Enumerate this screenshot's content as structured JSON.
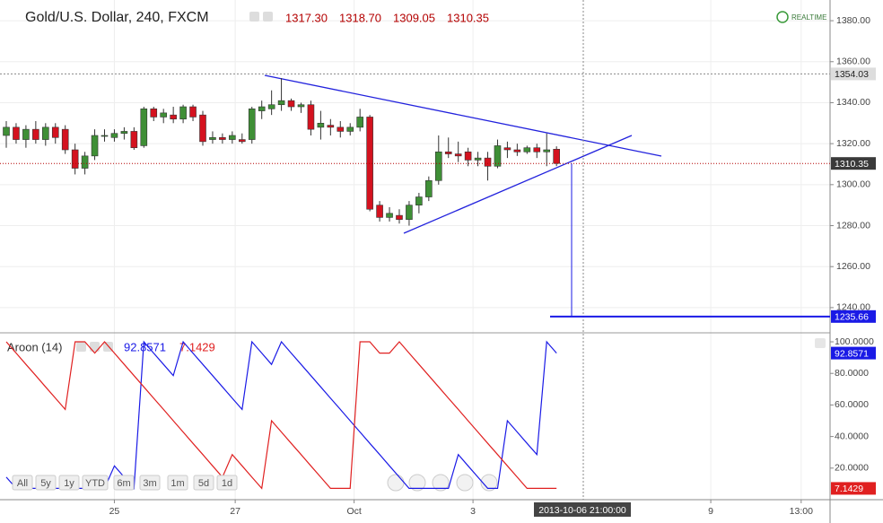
{
  "chart_data": [
    {
      "type": "candlestick",
      "title": "Gold/U.S. Dollar, 240, FXCM",
      "legend_values": [
        "1317.30",
        "1318.70",
        "1309.05",
        "1310.35"
      ],
      "badge": "REALTIME",
      "x": [
        0,
        1,
        2,
        3,
        4,
        5,
        6,
        7,
        8,
        9,
        10,
        11,
        12,
        13,
        14,
        15,
        16,
        17,
        18,
        19,
        20,
        21,
        22,
        23,
        24,
        25,
        26,
        27,
        28,
        29,
        30,
        31,
        32,
        33,
        34,
        35,
        36,
        37,
        38,
        39,
        40,
        41,
        42,
        43,
        44,
        45,
        46,
        47,
        48,
        49,
        50,
        51,
        52,
        53,
        54,
        55,
        56
      ],
      "open": [
        1324,
        1328,
        1322,
        1327,
        1322,
        1328,
        1327,
        1317,
        1308,
        1314,
        1324,
        1323,
        1325,
        1326,
        1319,
        1337,
        1333,
        1334,
        1332,
        1338,
        1334,
        1322,
        1323,
        1322,
        1322,
        1322,
        1336,
        1337,
        1339,
        1341,
        1338,
        1339,
        1328,
        1329,
        1328,
        1326,
        1328,
        1333,
        1290,
        1284,
        1285,
        1283,
        1290,
        1294,
        1302,
        1316,
        1315,
        1316,
        1312,
        1313,
        1309,
        1318,
        1317,
        1316,
        1318,
        1316,
        1317.3
      ],
      "high": [
        1331,
        1330,
        1329,
        1331,
        1330,
        1330,
        1329,
        1320,
        1316,
        1327,
        1327,
        1327,
        1328,
        1328,
        1338,
        1338,
        1337,
        1338,
        1339,
        1339,
        1336,
        1326,
        1325,
        1326,
        1325,
        1338,
        1341,
        1346,
        1352,
        1342,
        1340,
        1341,
        1336,
        1332,
        1331,
        1330,
        1337,
        1334,
        1292,
        1289,
        1288,
        1292,
        1296,
        1304,
        1324,
        1323,
        1321,
        1318,
        1316,
        1316,
        1322,
        1321,
        1320,
        1319,
        1320,
        1325,
        1318.7
      ],
      "low": [
        1318,
        1320,
        1318,
        1320,
        1319,
        1320,
        1315,
        1305,
        1305,
        1312,
        1321,
        1321,
        1322,
        1317,
        1318,
        1331,
        1330,
        1330,
        1330,
        1331,
        1319,
        1320,
        1320,
        1320,
        1320,
        1320,
        1332,
        1334,
        1336,
        1336,
        1335,
        1324,
        1322,
        1324,
        1323,
        1324,
        1326,
        1287,
        1282,
        1282,
        1281,
        1280,
        1286,
        1292,
        1300,
        1313,
        1311,
        1309,
        1309,
        1302,
        1308,
        1313,
        1314,
        1315,
        1313,
        1309,
        1309.05
      ],
      "close": [
        1328,
        1322,
        1327,
        1322,
        1328,
        1323,
        1317,
        1308,
        1314,
        1324,
        1324,
        1325,
        1326,
        1318,
        1337,
        1333,
        1335,
        1332,
        1338,
        1333,
        1321,
        1323,
        1322,
        1324,
        1321,
        1337,
        1338,
        1339,
        1341,
        1338,
        1339,
        1327,
        1330,
        1328,
        1326,
        1328,
        1333,
        1288,
        1284,
        1286,
        1283,
        1290,
        1294,
        1302,
        1316,
        1315,
        1314,
        1312,
        1313,
        1309,
        1319,
        1317,
        1316,
        1318,
        1316,
        1317,
        1310.35
      ],
      "up_color": "#3f8f36",
      "down_color": "#d4121f",
      "xlim": [
        -0.64,
        83.84
      ],
      "xticks": [
        {
          "value": 11,
          "label": "25"
        },
        {
          "value": 23.3,
          "label": "27"
        },
        {
          "value": 35.4,
          "label": "Oct"
        },
        {
          "value": 47.5,
          "label": "3"
        },
        {
          "value": 71.7,
          "label": "9"
        },
        {
          "value": 80.9,
          "label": "13:00"
        }
      ],
      "ylim": [
        1227.7,
        1390.1
      ],
      "yticks": [
        {
          "value": 1240,
          "label": "1240.00"
        },
        {
          "value": 1260,
          "label": "1260.00"
        },
        {
          "value": 1280,
          "label": "1280.00"
        },
        {
          "value": 1300,
          "label": "1300.00"
        },
        {
          "value": 1320,
          "label": "1320.00"
        },
        {
          "value": 1340,
          "label": "1340.00"
        },
        {
          "value": 1360,
          "label": "1360.00"
        },
        {
          "value": 1380,
          "label": "1380.00"
        }
      ],
      "crosshair_price": 1354.03,
      "crosshair_time": "2013-10-06 21:00:00",
      "hline": 1235.66,
      "grid": true
    },
    {
      "type": "line",
      "title": "Aroon (14)",
      "x": [
        0,
        1,
        2,
        3,
        4,
        5,
        6,
        7,
        8,
        9,
        10,
        11,
        12,
        13,
        14,
        15,
        16,
        17,
        18,
        19,
        20,
        21,
        22,
        23,
        24,
        25,
        26,
        27,
        28,
        29,
        30,
        31,
        32,
        33,
        34,
        35,
        36,
        37,
        38,
        39,
        40,
        41,
        42,
        43,
        44,
        45,
        46,
        47,
        48,
        49,
        50,
        51,
        52,
        53,
        54,
        55,
        56
      ],
      "series": [
        {
          "color": "#1a1ae6",
          "values": [
            14.2857,
            7.1429,
            7.1429,
            7.1429,
            7.1429,
            7.1429,
            7.1429,
            7.1429,
            7.1429,
            7.1429,
            7.1429,
            21.4286,
            14.2857,
            7.1429,
            100,
            92.8571,
            85.7143,
            78.5714,
            100,
            92.8571,
            85.7143,
            78.5714,
            71.4286,
            64.2857,
            57.1429,
            100,
            92.8571,
            85.7143,
            100,
            92.8571,
            85.7143,
            78.5714,
            71.4286,
            64.2857,
            57.1429,
            50,
            42.8571,
            35.7143,
            28.5714,
            21.4286,
            14.2857,
            7.1429,
            7.1429,
            7.1429,
            7.1429,
            7.1429,
            28.5714,
            21.4286,
            14.2857,
            7.1429,
            7.1429,
            50,
            42.8571,
            35.7143,
            28.5714,
            100,
            92.8571
          ]
        },
        {
          "color": "#e02020",
          "values": [
            100,
            92.8571,
            85.7143,
            78.5714,
            71.4286,
            64.2857,
            57.1429,
            100,
            100,
            92.8571,
            100,
            92.8571,
            85.7143,
            78.5714,
            71.4286,
            64.2857,
            57.1429,
            50,
            42.8571,
            35.7143,
            28.5714,
            21.4286,
            14.2857,
            28.5714,
            21.4286,
            14.2857,
            7.1429,
            50,
            42.8571,
            35.7143,
            28.5714,
            21.4286,
            14.2857,
            7.1429,
            7.1429,
            7.1429,
            100,
            100,
            92.8571,
            92.8571,
            100,
            92.8571,
            85.7143,
            78.5714,
            71.4286,
            64.2857,
            57.1429,
            50,
            42.8571,
            35.7143,
            28.5714,
            21.4286,
            14.2857,
            7.1429,
            7.1429,
            7.1429,
            7.1429
          ]
        }
      ],
      "xlim": [
        -0.64,
        83.84
      ],
      "ylim": [
        0,
        105.7
      ],
      "yticks": [
        {
          "value": 20,
          "label": "20.0000"
        },
        {
          "value": 40,
          "label": "40.0000"
        },
        {
          "value": 60,
          "label": "60.0000"
        },
        {
          "value": 80,
          "label": "80.0000"
        },
        {
          "value": 100,
          "label": "100.0000"
        }
      ]
    }
  ],
  "toolbar": {
    "ranges": [
      "All",
      "5y",
      "1y",
      "YTD",
      "6m",
      "3m",
      "1m",
      "5d",
      "1d"
    ]
  }
}
